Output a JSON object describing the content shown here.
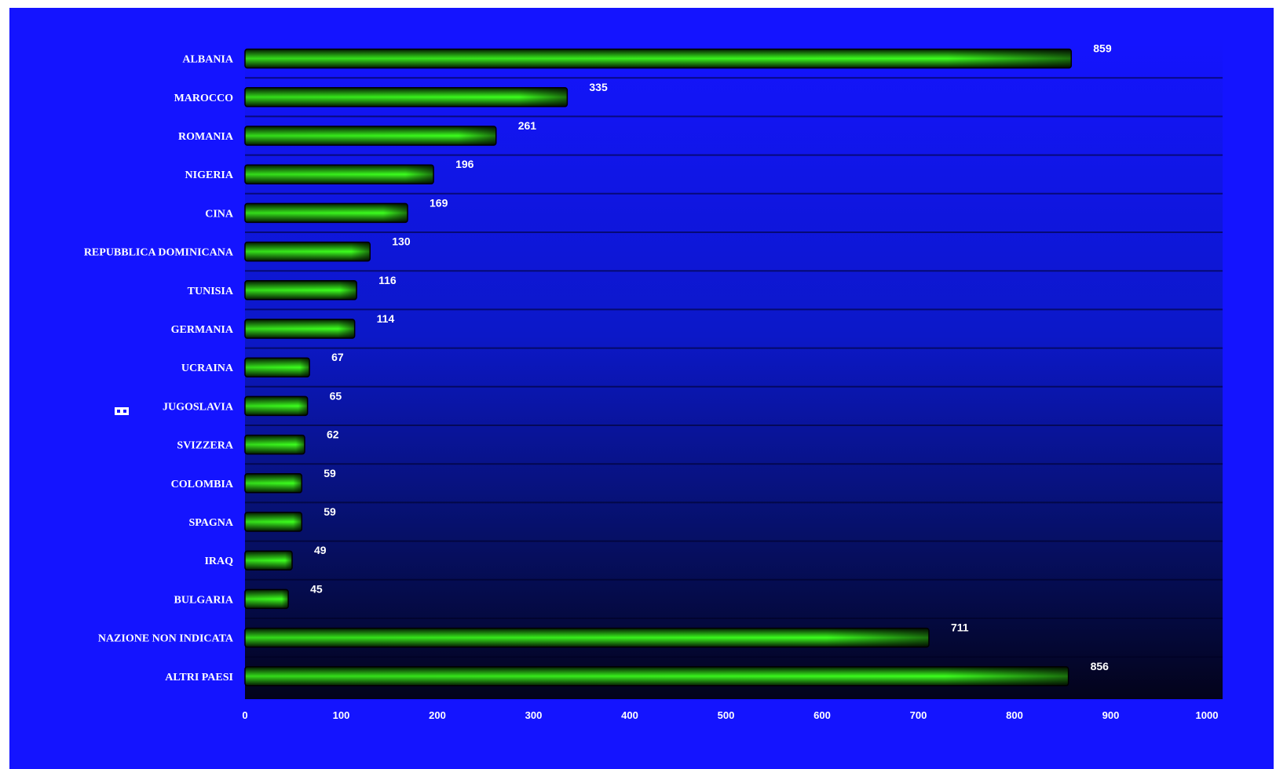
{
  "chart_data": {
    "type": "bar",
    "orientation": "horizontal",
    "categories": [
      "ALBANIA",
      "MAROCCO",
      "ROMANIA",
      "NIGERIA",
      "CINA",
      "REPUBBLICA DOMINICANA",
      "TUNISIA",
      "GERMANIA",
      "UCRAINA",
      "JUGOSLAVIA",
      "SVIZZERA",
      "COLOMBIA",
      "SPAGNA",
      "IRAQ",
      "BULGARIA",
      "NAZIONE NON INDICATA",
      "ALTRI PAESI"
    ],
    "values": [
      859,
      335,
      261,
      196,
      169,
      130,
      116,
      114,
      67,
      65,
      62,
      59,
      59,
      49,
      45,
      711,
      856
    ],
    "data_labels": [
      "859",
      "335",
      "261",
      "196",
      "169",
      "130",
      "116",
      "114",
      "67",
      "65",
      "62",
      "59",
      "59",
      "49",
      "45",
      "711",
      "856"
    ],
    "xlim": [
      0,
      1000
    ],
    "xticks": [
      "0",
      "100",
      "200",
      "300",
      "400",
      "500",
      "600",
      "700",
      "800",
      "900",
      "1000"
    ],
    "title": "",
    "xlabel": "",
    "ylabel": "",
    "grid": "horizontal separators",
    "legend": "none",
    "colors": {
      "background_top": "#1414ff",
      "background_bottom": "#03031a",
      "bar_bright": "#3cff1e",
      "bar_dark": "#041a02",
      "text": "#ffffff"
    }
  }
}
